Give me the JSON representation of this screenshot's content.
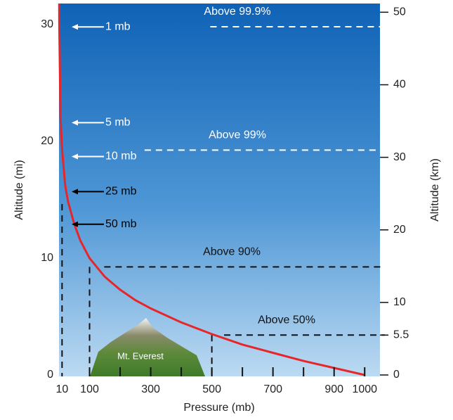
{
  "chart_data": {
    "type": "line",
    "xlabel": "Pressure (mb)",
    "ylabel": "Altitude (mi)",
    "y2label": "Altitude (km)",
    "xlim": [
      0,
      1050
    ],
    "ylim": [
      0,
      31.8
    ],
    "y2lim": [
      0,
      51.2
    ],
    "xticks": [
      10,
      100,
      300,
      500,
      700,
      900,
      1000
    ],
    "xminorticks": [
      200,
      400,
      600,
      800
    ],
    "yticks": [
      0,
      10,
      20,
      30
    ],
    "y2ticks": [
      0,
      5.5,
      10,
      20,
      30,
      40,
      50
    ],
    "series": [
      {
        "color": "#e8262a",
        "x": [
          1000,
          900,
          800,
          700,
          600,
          500,
          400,
          300,
          250,
          200,
          150,
          100,
          70,
          50,
          30,
          25,
          20,
          10,
          5,
          1,
          0.8
        ],
        "values": [
          0,
          0.6,
          1.2,
          1.9,
          2.6,
          3.5,
          4.5,
          5.7,
          6.4,
          7.3,
          8.4,
          10,
          11.5,
          12.9,
          14.8,
          15.5,
          16.3,
          19.3,
          22,
          30,
          31.8
        ]
      }
    ],
    "levels": [
      {
        "label": "Above 99.9%",
        "y2": 48,
        "from": 495
      },
      {
        "label": "Above 99%",
        "y2": 31,
        "from": 280
      },
      {
        "label": "Above 90%",
        "y2": 14.9,
        "from": 148,
        "drop": 100
      },
      {
        "label": "Above 50%",
        "y2": 5.5,
        "from": 540,
        "drop": 500
      }
    ],
    "annotations": [
      {
        "text": "1 mb",
        "y": 29.8,
        "color": "#ffffff"
      },
      {
        "text": "5 mb",
        "y": 21.6,
        "color": "#ffffff"
      },
      {
        "text": "10 mb",
        "y": 18.7,
        "color": "#ffffff"
      },
      {
        "text": "25 mb",
        "y": 15.7,
        "color": "#000000"
      },
      {
        "text": "50 mb",
        "y": 12.9,
        "color": "#000000"
      }
    ],
    "mountain_label": "Mt. Everest"
  }
}
